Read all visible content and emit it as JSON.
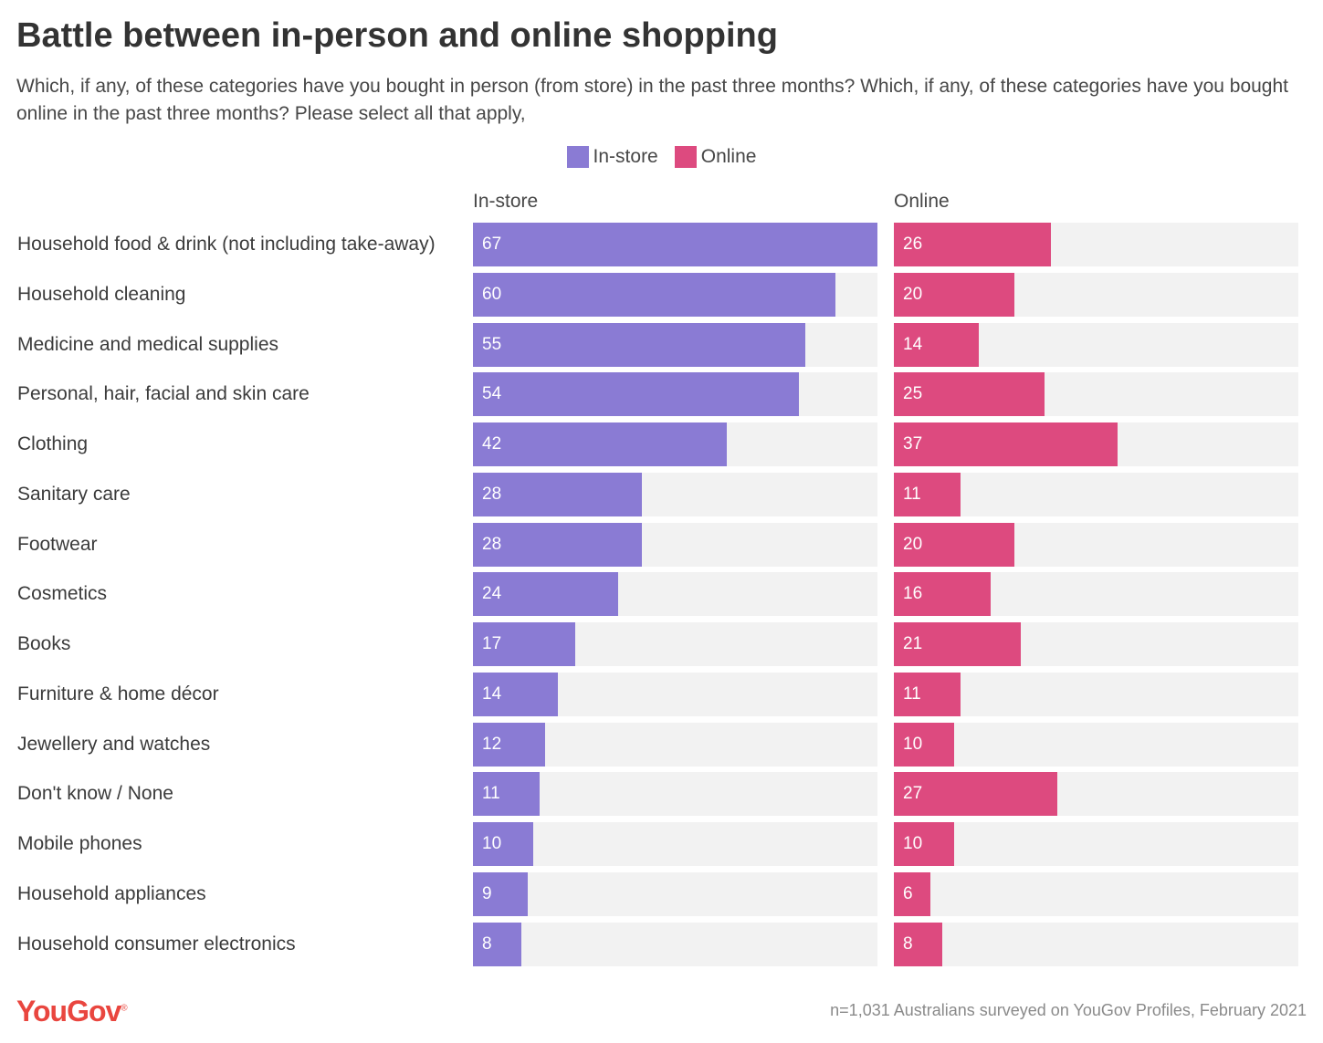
{
  "title": "Battle between in-person and online shopping",
  "subtitle": "Which, if any, of these categories have you bought in person (from store) in the past three months? Which, if any, of these categories have you bought online in the past three months? Please select all that apply,",
  "legend": [
    {
      "label": "In-store",
      "color": "#8a7bd4"
    },
    {
      "label": "Online",
      "color": "#dd4a7f"
    }
  ],
  "footer": {
    "logo": "YouGov",
    "note": "n=1,031 Australians surveyed on YouGov Profiles, February 2021"
  },
  "chart_data": {
    "type": "bar",
    "orientation": "horizontal",
    "title": "Battle between in-person and online shopping",
    "categories": [
      "Household food & drink (not including take-away)",
      "Household cleaning",
      "Medicine and medical supplies",
      "Personal, hair, facial and skin care",
      "Clothing",
      "Sanitary care",
      "Footwear",
      "Cosmetics",
      "Books",
      "Furniture & home décor",
      "Jewellery and watches",
      "Don't know / None",
      "Mobile phones",
      "Household appliances",
      "Household consumer electronics"
    ],
    "series": [
      {
        "name": "In-store",
        "color": "#8a7bd4",
        "values": [
          67,
          60,
          55,
          54,
          42,
          28,
          28,
          24,
          17,
          14,
          12,
          11,
          10,
          9,
          8
        ]
      },
      {
        "name": "Online",
        "color": "#dd4a7f",
        "values": [
          26,
          20,
          14,
          25,
          37,
          11,
          20,
          16,
          21,
          11,
          10,
          27,
          10,
          6,
          8
        ]
      }
    ],
    "xlim": [
      0,
      67
    ],
    "panels": [
      "In-store",
      "Online"
    ],
    "legend_position": "top-center",
    "grid": false
  }
}
